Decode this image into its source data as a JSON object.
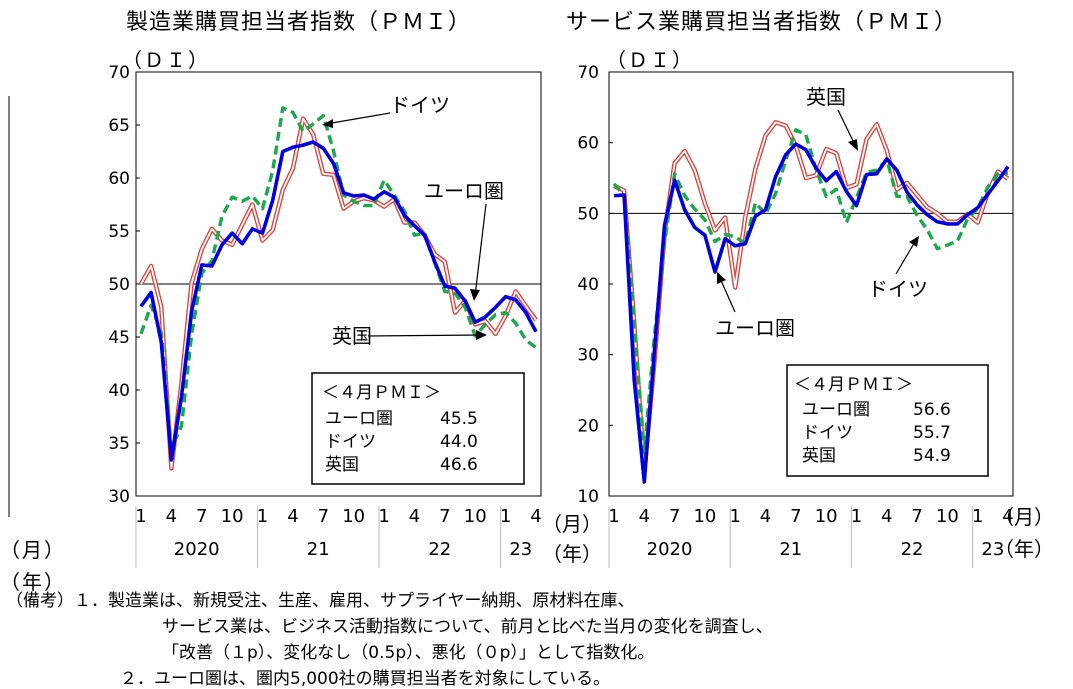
{
  "chart_data": [
    {
      "type": "line",
      "title": "製造業購買担当者指数（ＰＭＩ）",
      "yunit": "（ＤＩ）",
      "ylim": [
        30,
        70
      ],
      "yticks": [
        "30",
        "35",
        "40",
        "45",
        "50",
        "55",
        "60",
        "65",
        "70"
      ],
      "x_month_labels": [
        "1",
        "4",
        "7",
        "10",
        "1",
        "4",
        "7",
        "10",
        "1",
        "4",
        "7",
        "10",
        "1",
        "4"
      ],
      "x_month_unit": "（月）",
      "x_year_labels": [
        "2020",
        "21",
        "22",
        "23"
      ],
      "x_year_unit": "（年）",
      "reference_line": 50,
      "series": [
        {
          "name": "ユーロ圏",
          "color": "#0000dd",
          "style": "solid",
          "values": [
            47.9,
            49.2,
            44.5,
            33.4,
            39.4,
            47.4,
            51.8,
            51.7,
            53.7,
            54.8,
            53.8,
            55.2,
            54.8,
            57.9,
            62.5,
            62.9,
            63.1,
            63.4,
            62.8,
            61.4,
            58.6,
            58.3,
            58.4,
            58.0,
            58.7,
            58.2,
            56.5,
            55.5,
            54.6,
            52.1,
            49.8,
            49.6,
            48.4,
            46.4,
            46.9,
            47.8,
            48.8,
            48.5,
            47.3,
            45.5
          ]
        },
        {
          "name": "ドイツ",
          "color": "#1aa84a",
          "style": "dashed",
          "values": [
            45.3,
            48.0,
            45.4,
            34.5,
            36.6,
            45.2,
            51.0,
            52.2,
            56.4,
            58.2,
            57.8,
            58.3,
            57.1,
            60.7,
            66.6,
            66.2,
            64.4,
            65.1,
            65.9,
            62.6,
            58.4,
            57.8,
            57.4,
            57.4,
            59.8,
            58.4,
            56.9,
            54.6,
            54.8,
            52.0,
            49.3,
            49.1,
            47.8,
            45.1,
            46.2,
            47.1,
            47.3,
            46.3,
            44.7,
            44.0
          ]
        },
        {
          "name": "英国",
          "color": "#e0403a",
          "style": "double",
          "values": [
            50.0,
            51.7,
            47.8,
            32.6,
            40.7,
            50.1,
            53.3,
            55.2,
            54.1,
            53.7,
            55.6,
            57.5,
            54.1,
            55.1,
            58.9,
            60.9,
            65.6,
            64.1,
            60.4,
            60.3,
            57.1,
            57.8,
            58.1,
            57.9,
            57.3,
            58.0,
            55.8,
            55.8,
            54.6,
            52.8,
            52.1,
            47.3,
            48.4,
            46.2,
            46.5,
            45.3,
            47.0,
            49.3,
            47.9,
            46.6
          ]
        }
      ],
      "annotations": [
        "ドイツ",
        "ユーロ圏",
        "英国"
      ],
      "legend_box": {
        "heading": "＜４月ＰＭＩ＞",
        "rows": [
          {
            "name": "ユーロ圏",
            "value": "45.5"
          },
          {
            "name": "ドイツ",
            "value": "44.0"
          },
          {
            "name": "英国",
            "value": "46.6"
          }
        ]
      }
    },
    {
      "type": "line",
      "title": "サービス業購買担当者指数（ＰＭＩ）",
      "yunit": "（ＤＩ）",
      "ylim": [
        10,
        70
      ],
      "yticks": [
        "10",
        "20",
        "30",
        "40",
        "50",
        "60",
        "70"
      ],
      "x_month_labels": [
        "1",
        "4",
        "7",
        "10",
        "1",
        "4",
        "7",
        "10",
        "1",
        "4",
        "7",
        "10",
        "1",
        "4"
      ],
      "x_month_unit": "（月）",
      "x_year_labels": [
        "2020",
        "21",
        "22",
        "23"
      ],
      "x_year_unit": "（年）",
      "reference_line": 50,
      "series": [
        {
          "name": "ユーロ圏",
          "color": "#0000dd",
          "style": "solid",
          "values": [
            52.5,
            52.6,
            26.4,
            12.0,
            30.5,
            48.3,
            54.7,
            50.5,
            48.0,
            46.9,
            41.7,
            46.4,
            45.4,
            45.7,
            49.6,
            50.5,
            55.2,
            58.3,
            59.8,
            59.0,
            56.4,
            54.6,
            55.9,
            53.1,
            51.1,
            55.5,
            55.6,
            57.7,
            56.1,
            53.0,
            51.2,
            49.8,
            48.8,
            48.5,
            48.5,
            49.8,
            50.8,
            52.7,
            54.6,
            56.6
          ]
        },
        {
          "name": "ドイツ",
          "color": "#1aa84a",
          "style": "dashed",
          "values": [
            54.2,
            52.5,
            34.5,
            16.2,
            32.6,
            45.8,
            55.6,
            52.5,
            50.6,
            49.1,
            46.0,
            47.0,
            46.7,
            45.7,
            51.5,
            49.9,
            52.8,
            57.5,
            61.8,
            61.1,
            56.2,
            52.4,
            53.4,
            48.7,
            52.2,
            55.8,
            56.1,
            57.6,
            52.4,
            52.4,
            49.7,
            47.7,
            45.0,
            45.5,
            46.1,
            49.2,
            50.7,
            53.7,
            55.6,
            55.7
          ]
        },
        {
          "name": "英国",
          "color": "#e0403a",
          "style": "double",
          "values": [
            53.9,
            53.2,
            34.5,
            13.4,
            29.0,
            47.1,
            57.1,
            58.8,
            56.1,
            51.4,
            47.6,
            49.4,
            39.5,
            49.5,
            56.3,
            61.0,
            62.9,
            62.4,
            59.6,
            55.0,
            55.4,
            59.1,
            58.5,
            53.6,
            54.1,
            60.5,
            62.6,
            58.9,
            53.4,
            54.3,
            52.6,
            50.9,
            50.0,
            48.8,
            48.8,
            49.9,
            48.7,
            52.9,
            55.9,
            54.9
          ]
        }
      ],
      "annotations": [
        "英国",
        "ユーロ圏",
        "ドイツ"
      ],
      "legend_box": {
        "heading": "＜４月ＰＭＩ＞",
        "rows": [
          {
            "name": "ユーロ圏",
            "value": "56.6"
          },
          {
            "name": "ドイツ",
            "value": "55.7"
          },
          {
            "name": "英国",
            "value": "54.9"
          }
        ]
      }
    }
  ],
  "left_partial": {
    "month_unit": "（月）",
    "year_unit": "（年）"
  },
  "notes": [
    "（備考）１．製造業は、新規受注、生産、雇用、サプライヤー納期、原材料在庫、",
    "サービス業は、ビジネス活動指数について、前月と比べた当月の変化を調査し、",
    "「改善（１p）、変化なし（0.5p）、悪化（０p）」として指数化。",
    "２．ユーロ圏は、圏内5,000社の購買担当者を対象にしている。"
  ]
}
